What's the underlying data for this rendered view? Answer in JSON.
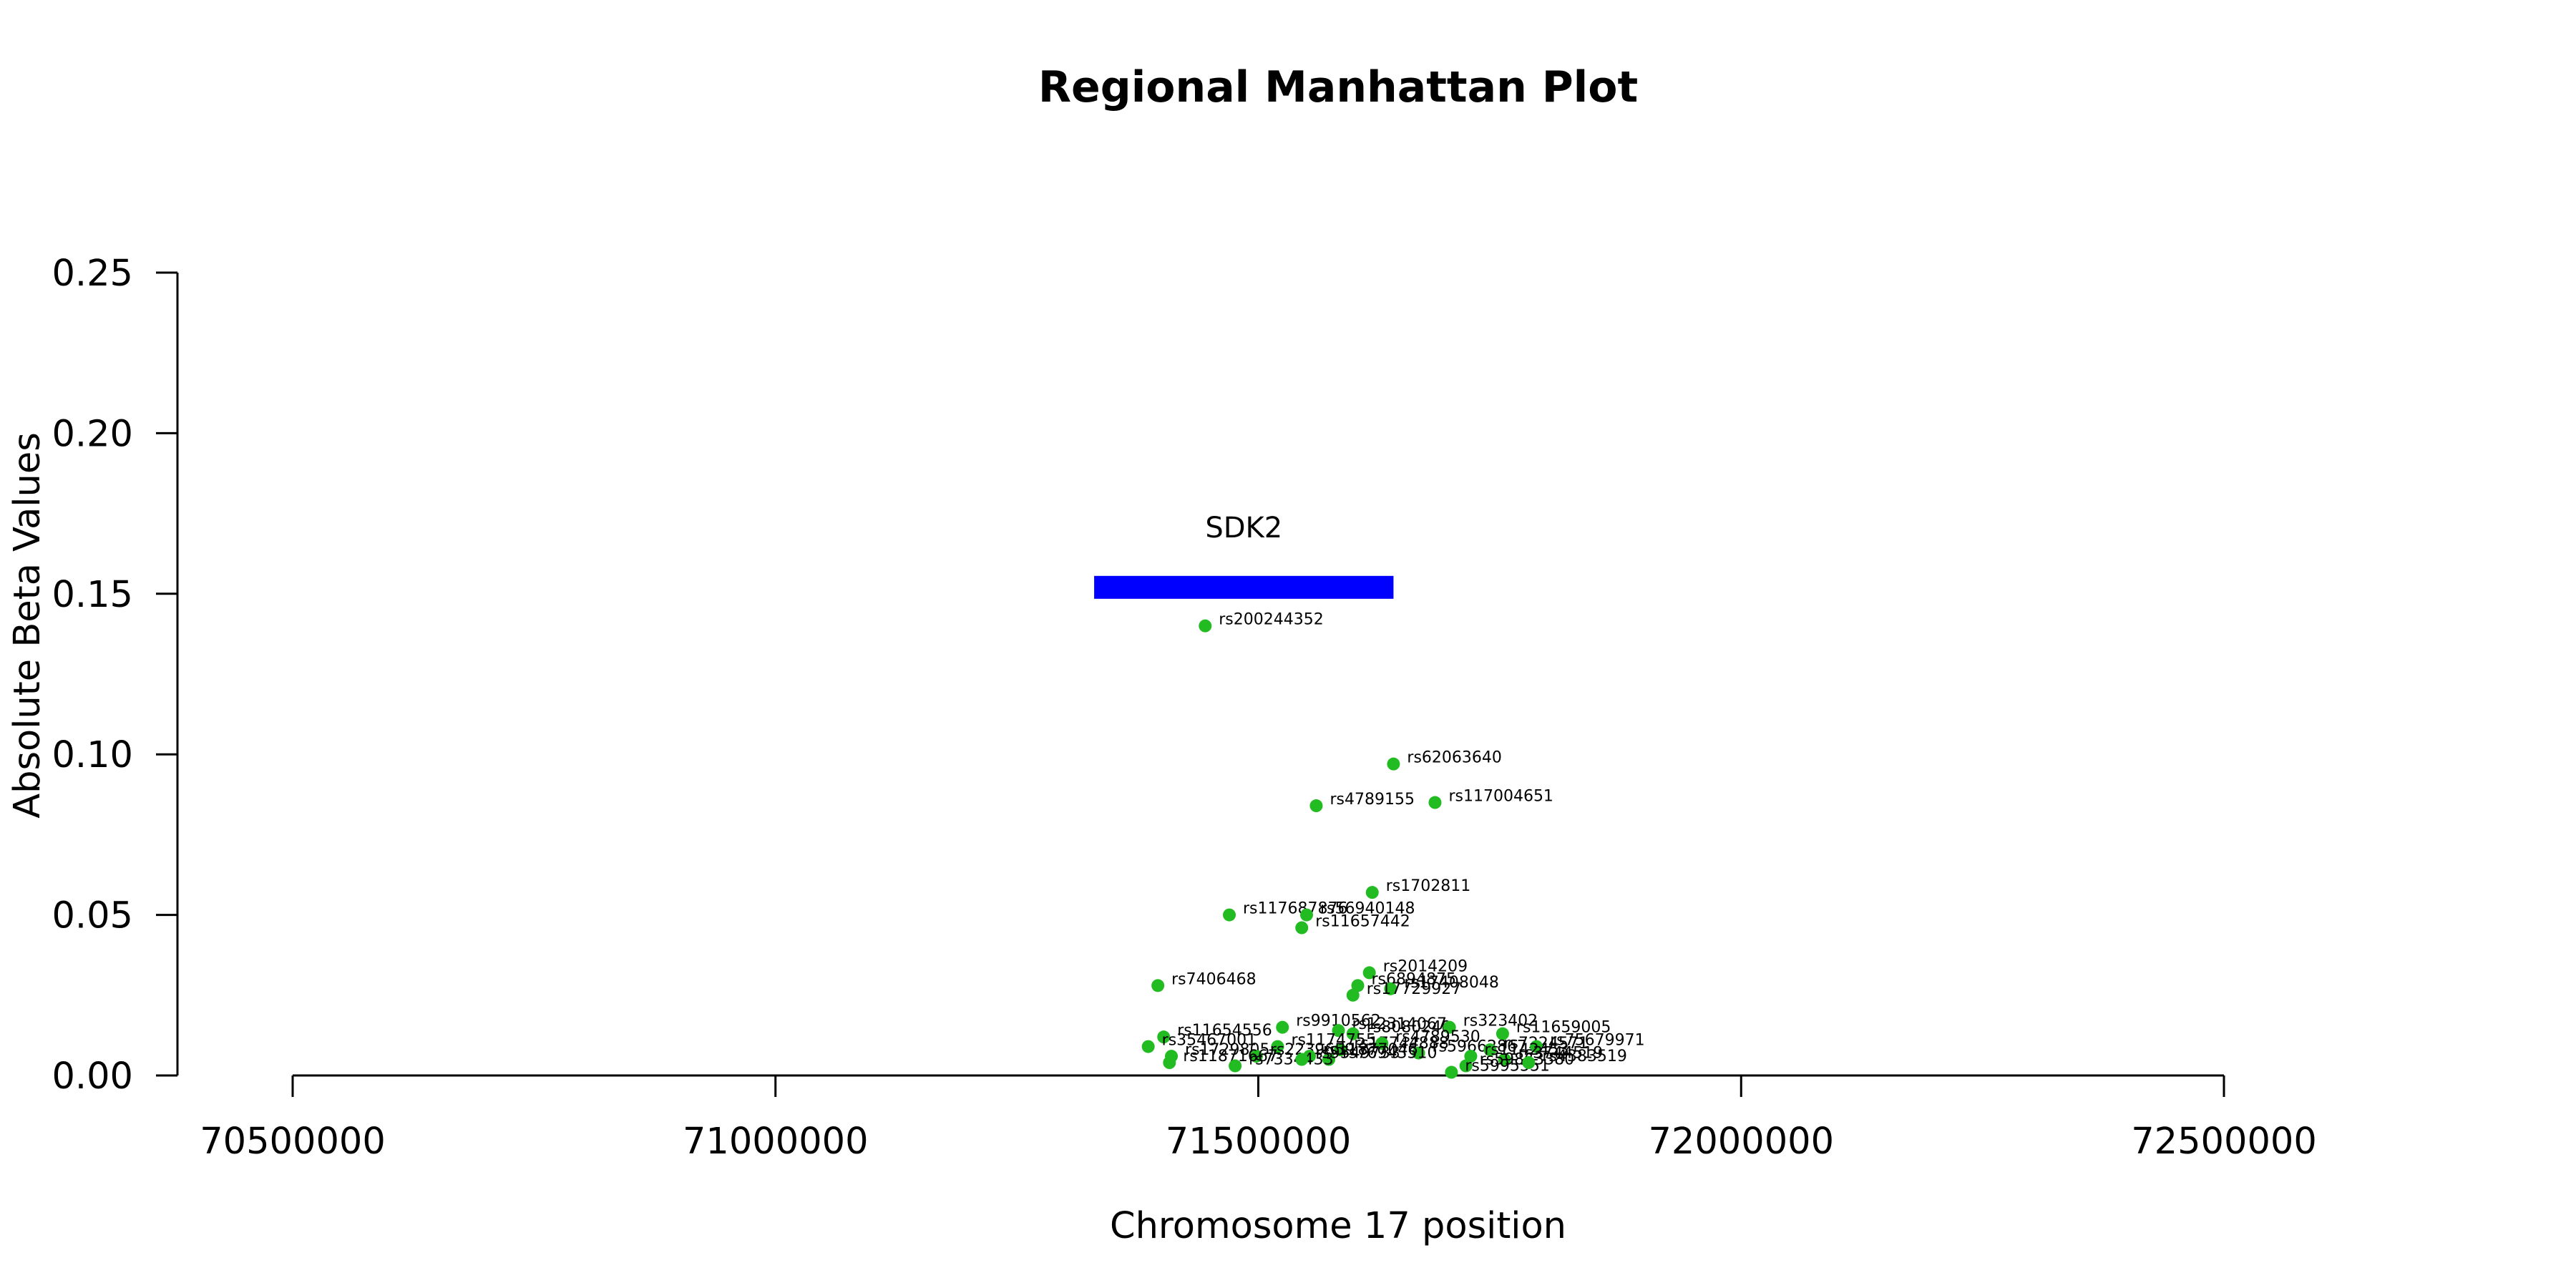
{
  "chart_data": {
    "type": "scatter",
    "title": "Regional Manhattan Plot",
    "xlabel": "Chromosome 17 position",
    "ylabel": "Absolute Beta Values",
    "xlim": [
      70400000,
      72600000
    ],
    "ylim": [
      0,
      0.25
    ],
    "x_ticks": [
      70500000,
      71000000,
      71500000,
      72000000,
      72500000
    ],
    "y_ticks": [
      0.0,
      0.05,
      0.1,
      0.15,
      0.2,
      0.25
    ],
    "x_tick_labels": [
      "70500000",
      "71000000",
      "71500000",
      "72000000",
      "72500000"
    ],
    "y_tick_labels": [
      "0.00",
      "0.05",
      "0.10",
      "0.15",
      "0.20",
      "0.25"
    ],
    "grid": false,
    "point_color": "#22bb22",
    "gene": {
      "name": "SDK2",
      "start": 71330000,
      "end": 71640000,
      "y": 0.152,
      "color": "#0000ff"
    },
    "points": [
      {
        "label": "rs200244352",
        "x": 71445000,
        "y": 0.14
      },
      {
        "label": "rs62063640",
        "x": 71640000,
        "y": 0.097
      },
      {
        "label": "rs4789155",
        "x": 71560000,
        "y": 0.084
      },
      {
        "label": "rs117004651",
        "x": 71683000,
        "y": 0.085
      },
      {
        "label": "rs1702811",
        "x": 71618000,
        "y": 0.057
      },
      {
        "label": "rs117687876",
        "x": 71470000,
        "y": 0.05
      },
      {
        "label": "rs56940148",
        "x": 71550000,
        "y": 0.05
      },
      {
        "label": "rs11657442",
        "x": 71545000,
        "y": 0.046
      },
      {
        "label": "rs2014209",
        "x": 71615000,
        "y": 0.032
      },
      {
        "label": "rs6894875",
        "x": 71603000,
        "y": 0.028
      },
      {
        "label": "rs17408048",
        "x": 71637000,
        "y": 0.027
      },
      {
        "label": "rs17729927",
        "x": 71598000,
        "y": 0.025
      },
      {
        "label": "rs7406468",
        "x": 71396000,
        "y": 0.028
      },
      {
        "label": "rs9910562",
        "x": 71525000,
        "y": 0.015
      },
      {
        "label": "rs12314067",
        "x": 71583000,
        "y": 0.014
      },
      {
        "label": "rs8080240",
        "x": 71598000,
        "y": 0.013
      },
      {
        "label": "rs323402",
        "x": 71698000,
        "y": 0.015
      },
      {
        "label": "rs11659005",
        "x": 71753000,
        "y": 0.013
      },
      {
        "label": "rs11654556",
        "x": 71402000,
        "y": 0.012
      },
      {
        "label": "rs35467001",
        "x": 71386000,
        "y": 0.009
      },
      {
        "label": "rs1174755",
        "x": 71520000,
        "y": 0.009
      },
      {
        "label": "rs17744888",
        "x": 71585000,
        "y": 0.008
      },
      {
        "label": "rs4789530",
        "x": 71628000,
        "y": 0.01
      },
      {
        "label": "rs59662867",
        "x": 71666000,
        "y": 0.007
      },
      {
        "label": "rs7224571",
        "x": 71740000,
        "y": 0.008
      },
      {
        "label": "rs75679971",
        "x": 71788000,
        "y": 0.009
      },
      {
        "label": "rs1729805",
        "x": 71410000,
        "y": 0.006
      },
      {
        "label": "rs2239659",
        "x": 71498000,
        "y": 0.006
      },
      {
        "label": "rs11877046",
        "x": 71553000,
        "y": 0.006
      },
      {
        "label": "rs76943510",
        "x": 71573000,
        "y": 0.005
      },
      {
        "label": "rs11871667",
        "x": 71408000,
        "y": 0.004
      },
      {
        "label": "rs7334433",
        "x": 71476000,
        "y": 0.003
      },
      {
        "label": "rs9549733",
        "x": 71545000,
        "y": 0.005
      },
      {
        "label": "rs3744519",
        "x": 71755000,
        "y": 0.005
      },
      {
        "label": "rs1142453",
        "x": 71720000,
        "y": 0.006
      },
      {
        "label": "rs59863380",
        "x": 71715000,
        "y": 0.003
      },
      {
        "label": "rs5995551",
        "x": 71700000,
        "y": 0.001
      },
      {
        "label": "rs4383519",
        "x": 71780000,
        "y": 0.004
      }
    ]
  }
}
